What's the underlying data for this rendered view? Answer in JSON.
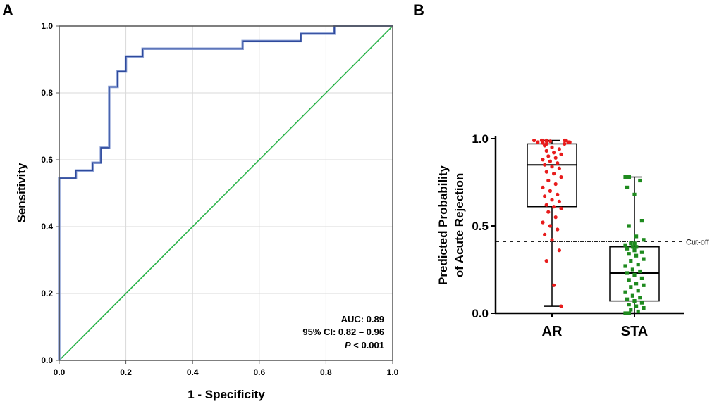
{
  "colors": {
    "roc_line": "#2e4a9c",
    "reference_line": "#2bb34a",
    "ar_points": "#e81c1c",
    "sta_points": "#1e8a1e",
    "grid": "#d9d9d9"
  },
  "chart_data": [
    {
      "panel": "A",
      "type": "line",
      "xlabel": "1 - Specificity",
      "ylabel": "Sensitivity",
      "xlim": [
        0,
        1
      ],
      "ylim": [
        0,
        1
      ],
      "xticks": [
        "0.0",
        "0.2",
        "0.4",
        "0.6",
        "0.8",
        "1.0"
      ],
      "yticks": [
        "0.0",
        "0.2",
        "0.4",
        "0.6",
        "0.8",
        "1.0"
      ],
      "grid": true,
      "series": [
        {
          "name": "ROC",
          "x": [
            0,
            0,
            0.05,
            0.05,
            0.1,
            0.1,
            0.125,
            0.125,
            0.15,
            0.15,
            0.175,
            0.175,
            0.2,
            0.2,
            0.25,
            0.25,
            0.55,
            0.55,
            0.725,
            0.725,
            0.825,
            0.825,
            1.0
          ],
          "y": [
            0,
            0.545,
            0.545,
            0.568,
            0.568,
            0.591,
            0.591,
            0.636,
            0.636,
            0.818,
            0.818,
            0.864,
            0.864,
            0.909,
            0.909,
            0.932,
            0.932,
            0.955,
            0.955,
            0.977,
            0.977,
            1.0,
            1.0
          ]
        },
        {
          "name": "Reference",
          "x": [
            0,
            1
          ],
          "y": [
            0,
            1
          ]
        }
      ],
      "annotations": {
        "auc": "AUC: 0.89",
        "ci": "95% CI: 0.82 – 0.96",
        "p_label": "P",
        "p_value": " < 0.001"
      }
    },
    {
      "panel": "B",
      "type": "box",
      "ylabel_line1": "Predicted Probability",
      "ylabel_line2": "of Acute Rejection",
      "ylim": [
        0,
        1
      ],
      "yticks": [
        "0.0",
        "0.5",
        "1.0"
      ],
      "cutoff": 0.41,
      "cutoff_label": "Cut-off",
      "groups": [
        {
          "name": "AR",
          "min": 0.04,
          "q1": 0.61,
          "median": 0.85,
          "q3": 0.97,
          "max": 0.99,
          "points": [
            0.99,
            0.99,
            0.99,
            0.99,
            0.99,
            0.99,
            0.985,
            0.985,
            0.98,
            0.98,
            0.98,
            0.975,
            0.97,
            0.97,
            0.96,
            0.95,
            0.94,
            0.93,
            0.92,
            0.91,
            0.9,
            0.89,
            0.88,
            0.87,
            0.86,
            0.85,
            0.84,
            0.83,
            0.81,
            0.8,
            0.78,
            0.76,
            0.74,
            0.72,
            0.7,
            0.68,
            0.67,
            0.65,
            0.64,
            0.62,
            0.61,
            0.6,
            0.58,
            0.55,
            0.52,
            0.5,
            0.48,
            0.45,
            0.42,
            0.36,
            0.3,
            0.16,
            0.04
          ]
        },
        {
          "name": "STA",
          "min": 0.0,
          "q1": 0.07,
          "median": 0.23,
          "q3": 0.38,
          "max": 0.78,
          "points": [
            0.78,
            0.78,
            0.76,
            0.72,
            0.68,
            0.53,
            0.5,
            0.44,
            0.42,
            0.4,
            0.4,
            0.39,
            0.38,
            0.38,
            0.37,
            0.36,
            0.35,
            0.34,
            0.33,
            0.31,
            0.3,
            0.28,
            0.27,
            0.25,
            0.24,
            0.23,
            0.22,
            0.2,
            0.19,
            0.17,
            0.16,
            0.15,
            0.13,
            0.12,
            0.1,
            0.09,
            0.08,
            0.07,
            0.06,
            0.05,
            0.04,
            0.03,
            0.02,
            0.01,
            0.0,
            0.0
          ]
        }
      ]
    }
  ]
}
